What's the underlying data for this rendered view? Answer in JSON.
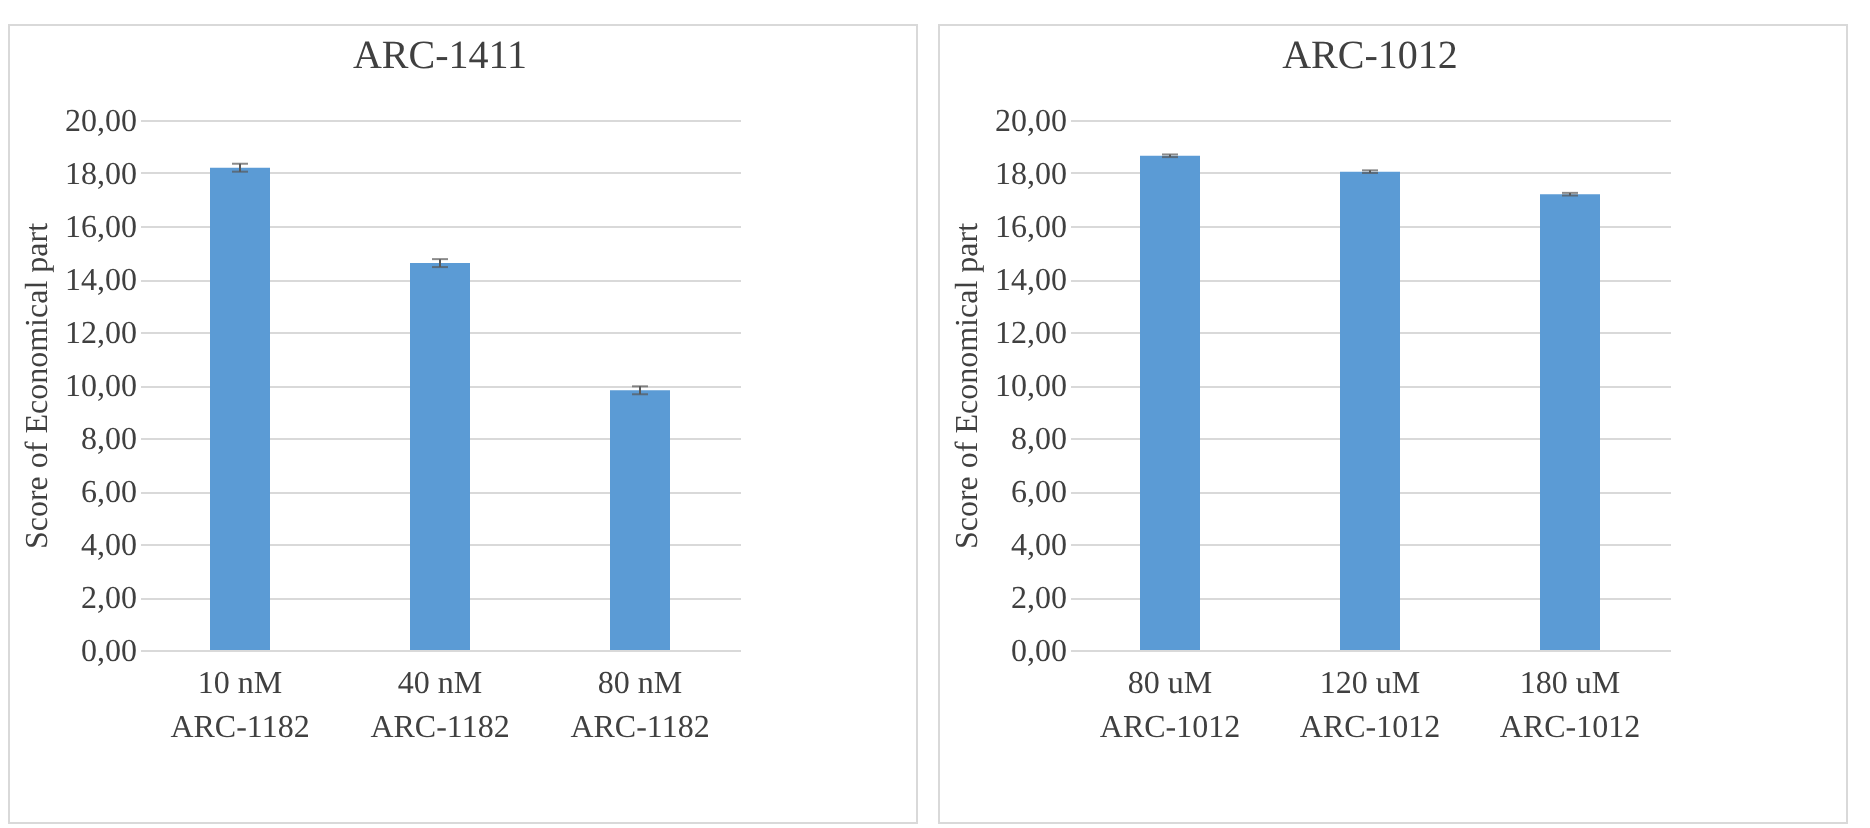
{
  "chart_data": [
    {
      "type": "bar",
      "title": "ARC-1411",
      "ylabel": "Score of Economical  part",
      "categories": [
        "10 nM\nARC-1182",
        "40 nM\nARC-1182",
        "80 nM\nARC-1182"
      ],
      "values": [
        18.2,
        14.6,
        9.8
      ],
      "errors": [
        0.15,
        0.15,
        0.15
      ],
      "color": "#5b9bd5",
      "ylim": [
        0,
        20
      ],
      "yticks": [
        {
          "value": 0,
          "label": "0,00"
        },
        {
          "value": 2,
          "label": "2,00"
        },
        {
          "value": 4,
          "label": "4,00"
        },
        {
          "value": 6,
          "label": "6,00"
        },
        {
          "value": 8,
          "label": "8,00"
        },
        {
          "value": 10,
          "label": "10,00"
        },
        {
          "value": 12,
          "label": "12,00"
        },
        {
          "value": 14,
          "label": "14,00"
        },
        {
          "value": 16,
          "label": "16,00"
        },
        {
          "value": 18,
          "label": "18,00"
        },
        {
          "value": 20,
          "label": "20,00"
        }
      ],
      "grid": "y"
    },
    {
      "type": "bar",
      "title": "ARC-1012",
      "ylabel": "Score of Economical  part",
      "categories": [
        "80 uM\nARC-1012",
        "120 uM\nARC-1012",
        "180 uM\nARC-1012"
      ],
      "values": [
        18.65,
        18.05,
        17.2
      ],
      "errors": [
        0.05,
        0.05,
        0.05
      ],
      "color": "#5b9bd5",
      "ylim": [
        0,
        20
      ],
      "yticks": [
        {
          "value": 0,
          "label": "0,00"
        },
        {
          "value": 2,
          "label": "2,00"
        },
        {
          "value": 4,
          "label": "4,00"
        },
        {
          "value": 6,
          "label": "6,00"
        },
        {
          "value": 8,
          "label": "8,00"
        },
        {
          "value": 10,
          "label": "10,00"
        },
        {
          "value": 12,
          "label": "12,00"
        },
        {
          "value": 14,
          "label": "14,00"
        },
        {
          "value": 16,
          "label": "16,00"
        },
        {
          "value": 18,
          "label": "18,00"
        },
        {
          "value": 20,
          "label": "20,00"
        }
      ],
      "grid": "y"
    }
  ]
}
